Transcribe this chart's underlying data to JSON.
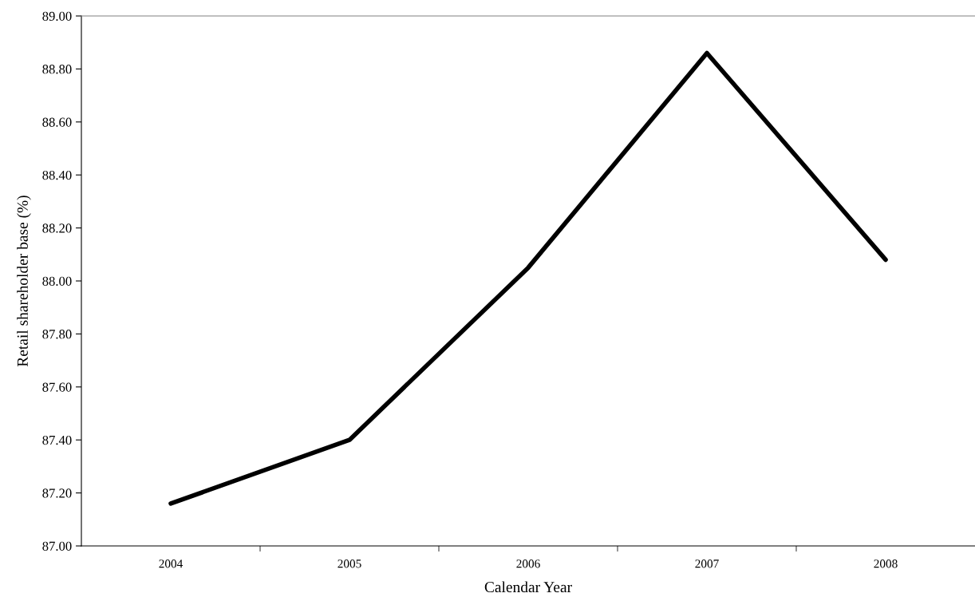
{
  "chart_data": {
    "type": "line",
    "xlabel": "Calendar Year",
    "ylabel": "Retail shareholder base (%)",
    "categories": [
      "2004",
      "2005",
      "2006",
      "2007",
      "2008"
    ],
    "series": [
      {
        "color": "#000000",
        "values": [
          87.16,
          87.4,
          88.05,
          88.86,
          88.08
        ]
      }
    ],
    "ylim": [
      87.0,
      89.0
    ],
    "yticks": [
      {
        "value": 87.0,
        "label": "87.00"
      },
      {
        "value": 87.2,
        "label": "87.20"
      },
      {
        "value": 87.4,
        "label": "87.40"
      },
      {
        "value": 87.6,
        "label": "87.60"
      },
      {
        "value": 87.8,
        "label": "87.80"
      },
      {
        "value": 88.0,
        "label": "88.00"
      },
      {
        "value": 88.2,
        "label": "88.20"
      },
      {
        "value": 88.4,
        "label": "88.40"
      },
      {
        "value": 88.6,
        "label": "88.60"
      },
      {
        "value": 88.8,
        "label": "88.80"
      },
      {
        "value": 89.0,
        "label": "89.00"
      }
    ],
    "grid": false,
    "legend": false,
    "marker": "none",
    "line_style": "solid"
  }
}
